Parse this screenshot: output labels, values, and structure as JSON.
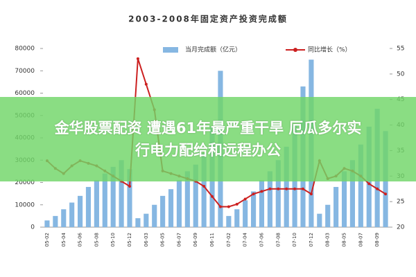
{
  "chart_data": {
    "type": "bar_line",
    "title": "2003-2008年固定资产投资完成额",
    "categories": [
      "05-02",
      "05-03",
      "05-04",
      "05-05",
      "05-06",
      "05-07",
      "05-08",
      "05-09",
      "05-10",
      "05-11",
      "05-12",
      "06-02",
      "06-03",
      "06-04",
      "06-05",
      "06-06",
      "06-07",
      "06-08",
      "06-09",
      "06-10",
      "06-11",
      "06-12",
      "07-02",
      "07-03",
      "07-04",
      "07-05",
      "07-06",
      "07-07",
      "07-08",
      "07-09",
      "07-10",
      "07-11",
      "07-12",
      "08-02",
      "08-03",
      "08-04",
      "08-05",
      "08-06",
      "08-07",
      "08-08",
      "08-09",
      "08-10"
    ],
    "series": [
      {
        "name": "当月完成额（亿元）",
        "color": "#86b7e2",
        "kind": "bar",
        "values": [
          3000,
          5000,
          8000,
          11000,
          14000,
          18000,
          21000,
          24000,
          27000,
          30000,
          26000,
          4000,
          6000,
          10000,
          14000,
          17000,
          21000,
          25000,
          28000,
          33000,
          45000,
          70000,
          5000,
          8000,
          12000,
          16000,
          21000,
          25000,
          30000,
          36000,
          46000,
          63000,
          75000,
          6000,
          10000,
          18000,
          25000,
          30000,
          37000,
          45000,
          53000,
          43000
        ]
      },
      {
        "name": "同比增长（%）",
        "color": "#cc2020",
        "kind": "line",
        "axis": "y2",
        "values": [
          33,
          31.5,
          30.5,
          32,
          33,
          32.5,
          32,
          31,
          30,
          29,
          28,
          53,
          48,
          43,
          31,
          30.5,
          30,
          29.5,
          29,
          28,
          26,
          24,
          24,
          24.5,
          25.5,
          26.5,
          27,
          27.5,
          27.5,
          27.5,
          27.5,
          27.5,
          26.5,
          33,
          29.5,
          30,
          31.5,
          31,
          30,
          28.5,
          27.5,
          26.5
        ]
      }
    ],
    "ylim": [
      0,
      80000
    ],
    "yticks": [
      0,
      10000,
      20000,
      30000,
      40000,
      50000,
      60000,
      70000,
      80000
    ],
    "y2lim": [
      20,
      55
    ],
    "y2ticks": [
      20,
      25,
      30,
      35,
      40,
      45,
      50,
      55
    ],
    "legend": "top"
  },
  "overlay": {
    "lines": [
      "金华股票配资 遭遇61年最严重干旱 厄瓜多尔实",
      "行电力配给和远程办公"
    ]
  }
}
